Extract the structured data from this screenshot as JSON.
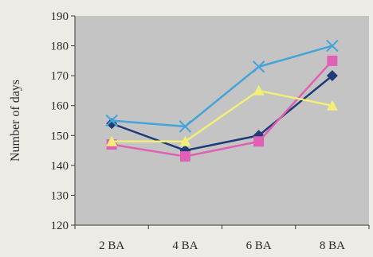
{
  "chart_data": {
    "type": "line",
    "title": "",
    "xlabel": "",
    "ylabel": "Number of days",
    "ylim": [
      120,
      190
    ],
    "yticks": [
      120,
      130,
      140,
      150,
      160,
      170,
      180,
      190
    ],
    "categories": [
      "2 BA",
      "4 BA",
      "6 BA",
      "8 BA"
    ],
    "grid": false,
    "legend": "none",
    "plot_background": "#c4c4c4",
    "series": [
      {
        "color": "#1f3b78",
        "marker": "diamond",
        "values": [
          154,
          145,
          150,
          170
        ]
      },
      {
        "color": "#e060b4",
        "marker": "square",
        "values": [
          147,
          143,
          148,
          175
        ]
      },
      {
        "color": "#f2ee7a",
        "marker": "triangle",
        "values": [
          148,
          148,
          165,
          160
        ]
      },
      {
        "color": "#44a3d8",
        "marker": "x",
        "values": [
          155,
          153,
          173,
          180
        ]
      }
    ]
  }
}
